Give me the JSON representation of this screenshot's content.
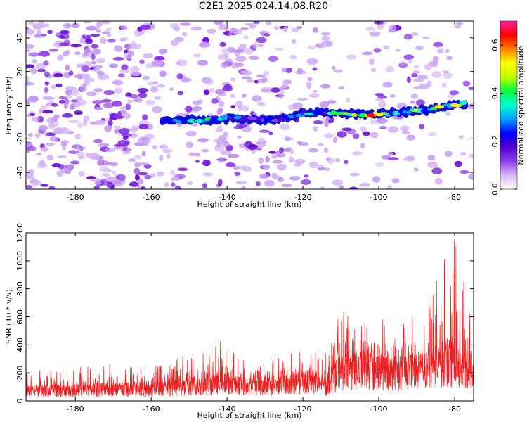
{
  "title": "C2E1.2025.024.14.08.R20",
  "chart_data": [
    {
      "type": "heatmap",
      "xlabel": "Height of straight line (km)",
      "ylabel": "Frequency (Hz)",
      "xlim": [
        -193,
        -75
      ],
      "ylim": [
        -50,
        50
      ],
      "x_ticks": [
        -180,
        -160,
        -140,
        -120,
        -100,
        -80
      ],
      "y_ticks": [
        -40,
        -20,
        0,
        20,
        40
      ],
      "grid": false,
      "colorbar": {
        "label": "Normalized spectral amplitude",
        "range": [
          0,
          0.7
        ],
        "ticks": [
          0.0,
          0.2,
          0.4,
          0.6
        ],
        "colors": [
          "#ffffff",
          "#d8b8f8",
          "#9040e8",
          "#5000d0",
          "#0000ff",
          "#00a0ff",
          "#00ffd0",
          "#00ff40",
          "#c0ff00",
          "#ffff00",
          "#ff8000",
          "#ff0000",
          "#ff20a0"
        ]
      },
      "band": {
        "description_free": true,
        "points": [
          {
            "x": -157,
            "y": -9.5,
            "a": 0.25
          },
          {
            "x": -150,
            "y": -9,
            "a": 0.3
          },
          {
            "x": -145,
            "y": -9,
            "a": 0.35
          },
          {
            "x": -140,
            "y": -8,
            "a": 0.28
          },
          {
            "x": -135,
            "y": -8,
            "a": 0.22
          },
          {
            "x": -130,
            "y": -9,
            "a": 0.2
          },
          {
            "x": -125,
            "y": -8,
            "a": 0.25
          },
          {
            "x": -120,
            "y": -5,
            "a": 0.3
          },
          {
            "x": -115,
            "y": -4,
            "a": 0.35
          },
          {
            "x": -110,
            "y": -5,
            "a": 0.4
          },
          {
            "x": -105,
            "y": -5,
            "a": 0.45
          },
          {
            "x": -102,
            "y": -6,
            "a": 0.65
          },
          {
            "x": -98,
            "y": -5,
            "a": 0.38
          },
          {
            "x": -93,
            "y": -4,
            "a": 0.35
          },
          {
            "x": -88,
            "y": -3,
            "a": 0.4
          },
          {
            "x": -84,
            "y": -1,
            "a": 0.5
          },
          {
            "x": -80,
            "y": 0,
            "a": 0.55
          },
          {
            "x": -77,
            "y": 1,
            "a": 0.45
          }
        ]
      }
    },
    {
      "type": "line",
      "xlabel": "Height of straight line (km)",
      "ylabel": "SNR (10 * v/v)",
      "xlim": [
        -193,
        -75
      ],
      "ylim": [
        0,
        1200
      ],
      "x_ticks": [
        -180,
        -160,
        -140,
        -120,
        -100,
        -80
      ],
      "y_ticks": [
        0,
        200,
        400,
        600,
        800,
        1000,
        1200
      ],
      "series_color": "#ee2020",
      "envelope": [
        {
          "x": -193,
          "base": 80,
          "peak": 220
        },
        {
          "x": -175,
          "base": 90,
          "peak": 260
        },
        {
          "x": -160,
          "base": 100,
          "peak": 280
        },
        {
          "x": -145,
          "base": 130,
          "peak": 350
        },
        {
          "x": -143,
          "base": 150,
          "peak": 460
        },
        {
          "x": -135,
          "base": 120,
          "peak": 300
        },
        {
          "x": -125,
          "base": 140,
          "peak": 340
        },
        {
          "x": -118,
          "base": 160,
          "peak": 360
        },
        {
          "x": -114,
          "base": 120,
          "peak": 340
        },
        {
          "x": -110,
          "base": 250,
          "peak": 650
        },
        {
          "x": -102,
          "base": 260,
          "peak": 620
        },
        {
          "x": -95,
          "base": 230,
          "peak": 550
        },
        {
          "x": -88,
          "base": 250,
          "peak": 650
        },
        {
          "x": -85,
          "base": 300,
          "peak": 1000
        },
        {
          "x": -80,
          "base": 320,
          "peak": 1200
        },
        {
          "x": -77,
          "base": 280,
          "peak": 800
        },
        {
          "x": -75,
          "base": 250,
          "peak": 500
        }
      ]
    }
  ]
}
